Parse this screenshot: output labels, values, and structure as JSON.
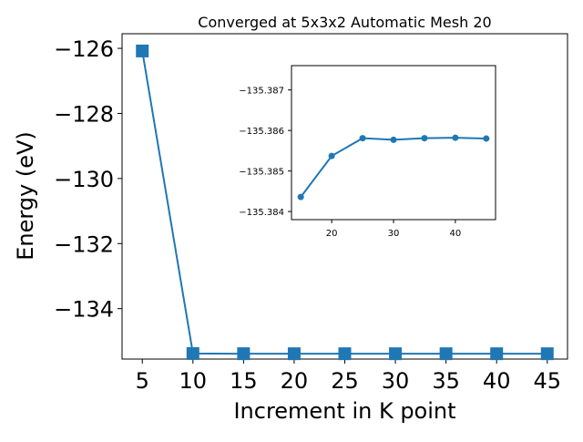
{
  "chart_data": [
    {
      "type": "line",
      "title": "Converged at 5x3x2 Automatic Mesh 20",
      "xlabel": "Increment in K point",
      "ylabel": "Energy (eV)",
      "marker": "square",
      "color": "#1f77b4",
      "grid": false,
      "xlim": [
        3.0,
        47.0
      ],
      "ylim": [
        -135.55,
        -125.55
      ],
      "xticks": [
        5,
        10,
        15,
        20,
        25,
        30,
        35,
        40,
        45
      ],
      "yticks": [
        -126,
        -128,
        -130,
        -132,
        -134
      ],
      "ytick_labels": [
        "−126",
        "−128",
        "−130",
        "−132",
        "−134"
      ],
      "x": [
        5,
        10,
        15,
        20,
        25,
        30,
        35,
        40,
        45
      ],
      "y": [
        -126.08,
        -135.38,
        -135.385,
        -135.386,
        -135.386,
        -135.386,
        -135.386,
        -135.386,
        -135.386
      ]
    },
    {
      "type": "line",
      "role": "inset",
      "marker": "circle",
      "color": "#1f77b4",
      "grid": false,
      "xlim": [
        13.5,
        46.5
      ],
      "ylim": [
        -135.3838,
        -135.3876
      ],
      "xticks": [
        20,
        30,
        40
      ],
      "yticks": [
        -135.387,
        -135.386,
        -135.385,
        -135.384
      ],
      "ytick_labels": [
        "−135.387",
        "−135.386",
        "−135.385",
        "−135.384"
      ],
      "x": [
        15,
        20,
        25,
        30,
        35,
        40,
        45
      ],
      "y": [
        -135.38436,
        -135.38537,
        -135.38581,
        -135.38577,
        -135.38581,
        -135.38582,
        -135.3858
      ]
    }
  ]
}
